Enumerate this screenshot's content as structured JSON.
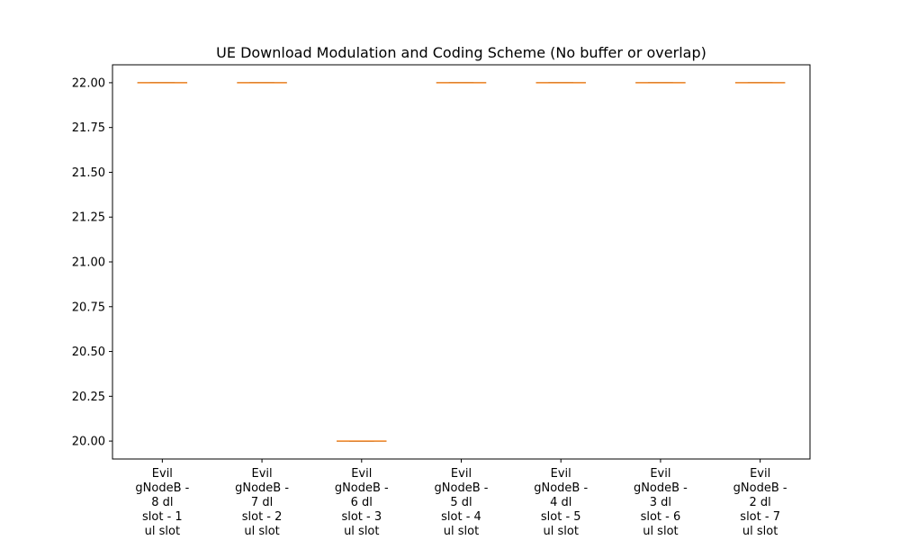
{
  "chart_data": {
    "type": "box",
    "title": "UE Download Modulation and Coding Scheme (No buffer or overlap)",
    "xlabel": "",
    "ylabel": "",
    "ylim": [
      19.9,
      22.1
    ],
    "yticks": [
      20.0,
      20.25,
      20.5,
      20.75,
      21.0,
      21.25,
      21.5,
      21.75,
      22.0
    ],
    "ytick_labels": [
      "20.00",
      "20.25",
      "20.50",
      "20.75",
      "21.00",
      "21.25",
      "21.50",
      "21.75",
      "22.00"
    ],
    "grid": false,
    "categories": [
      [
        "Evil",
        "gNodeB -",
        "8 dl",
        "slot - 1",
        "ul slot"
      ],
      [
        "Evil",
        "gNodeB -",
        "7 dl",
        "slot - 2",
        "ul slot"
      ],
      [
        "Evil",
        "gNodeB -",
        "6 dl",
        "slot - 3",
        "ul slot"
      ],
      [
        "Evil",
        "gNodeB -",
        "5 dl",
        "slot - 4",
        "ul slot"
      ],
      [
        "Evil",
        "gNodeB -",
        "4 dl",
        "slot - 5",
        "ul slot"
      ],
      [
        "Evil",
        "gNodeB -",
        "3 dl",
        "slot - 6",
        "ul slot"
      ],
      [
        "Evil",
        "gNodeB -",
        "2 dl",
        "slot - 7",
        "ul slot"
      ]
    ],
    "values": [
      22,
      22,
      20,
      22,
      22,
      22,
      22
    ],
    "colors": {
      "box": "#1f77b4",
      "median": "#ff7f0e",
      "axes": "#000000"
    }
  }
}
